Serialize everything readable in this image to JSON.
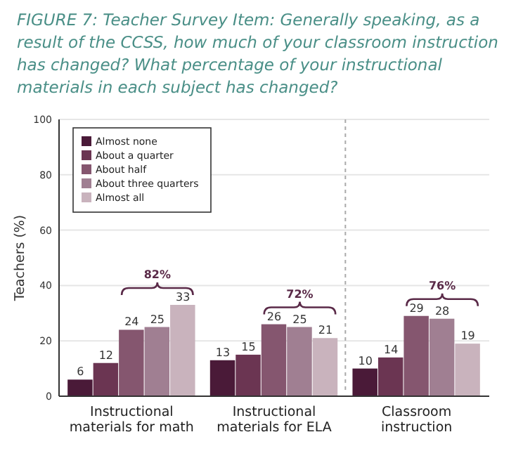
{
  "chart_data": {
    "type": "bar",
    "title": "FIGURE 7: Teacher Survey Item: Generally speaking, as a result of the CCSS, how much of your classroom instruction has changed? What percentage of your instructional materials in each subject has changed?",
    "ylabel": "Teachers (%)",
    "categories": [
      "Instructional materials for math",
      "Instructional materials for ELA",
      "Classroom instruction"
    ],
    "series": [
      {
        "name": "Almost none",
        "color": "#4a1a38",
        "values": [
          6,
          13,
          10
        ]
      },
      {
        "name": "About a quarter",
        "color": "#6b3552",
        "values": [
          12,
          15,
          14
        ]
      },
      {
        "name": "About half",
        "color": "#85566f",
        "values": [
          24,
          26,
          29
        ]
      },
      {
        "name": "About three quarters",
        "color": "#a07f92",
        "values": [
          25,
          25,
          28
        ]
      },
      {
        "name": "Almost all",
        "color": "#c9b3bd",
        "values": [
          33,
          21,
          19
        ]
      }
    ],
    "ylim": [
      0,
      100
    ],
    "yticks": [
      0,
      20,
      40,
      60,
      80,
      100
    ],
    "grid": "y",
    "legend": "top left",
    "data_labels": true,
    "annotations": [
      "82%",
      "72%",
      "76%"
    ]
  }
}
